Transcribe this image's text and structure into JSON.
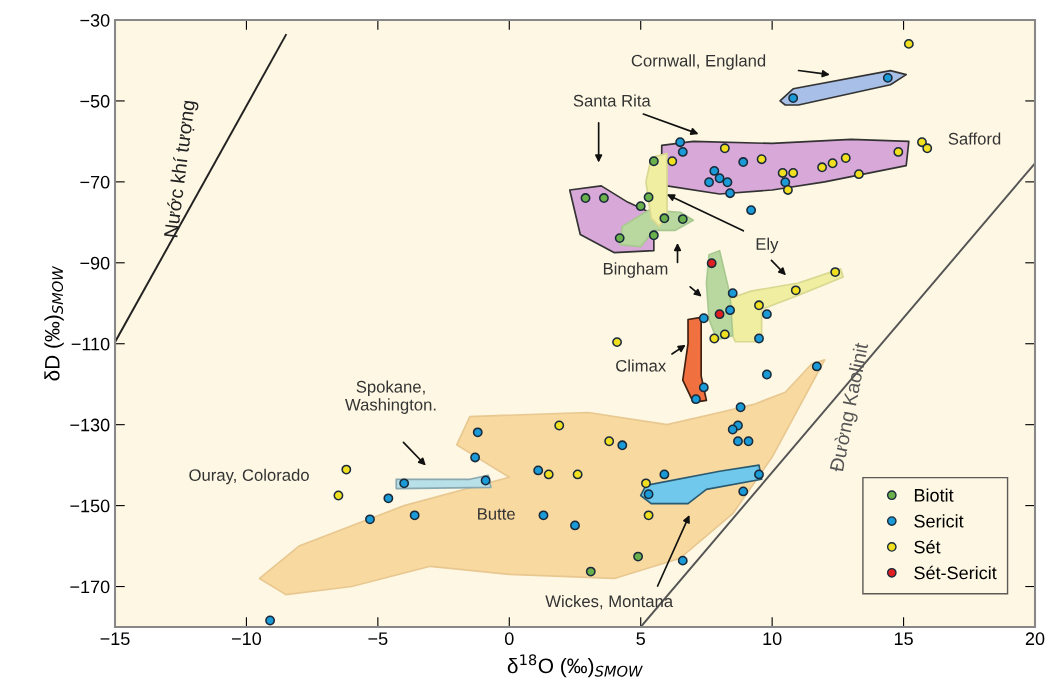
{
  "chart_data": {
    "type": "scatter",
    "xlabel": "δ$^{18}$O (‰)$_{SMOW}$",
    "ylabel": "δD (‰)$_{SMOW}$",
    "xlim": [
      -15,
      20
    ],
    "ylim": [
      -180,
      -30
    ],
    "xticks": [
      {
        "value": -15,
        "label": "−15"
      },
      {
        "value": -10,
        "label": "−10"
      },
      {
        "value": -5,
        "label": "−5"
      },
      0,
      5,
      10,
      15,
      20
    ],
    "yticks": [
      {
        "value": -30,
        "label": "−30"
      },
      {
        "value": -50,
        "label": "−50"
      },
      {
        "value": -70,
        "label": "−70"
      },
      {
        "value": -90,
        "label": "−90"
      },
      {
        "value": -110,
        "label": "−110"
      },
      {
        "value": -130,
        "label": "−130"
      },
      {
        "value": -150,
        "label": "−150"
      },
      {
        "value": -170,
        "label": "−170"
      }
    ],
    "grid": false,
    "legend": "bottom right",
    "marker": "circle",
    "series": [
      {
        "name": "Nước khí tượng",
        "type": "line",
        "marker": "none",
        "color": "#222222",
        "x": [
          -15,
          -8.5
        ],
        "values": [
          -109.6,
          -33.7
        ]
      },
      {
        "name": "Đường Kaolinit",
        "type": "line",
        "marker": "none",
        "color": "#555555",
        "x": [
          5.0,
          20
        ],
        "values": [
          -180,
          -65.4
        ]
      },
      {
        "name": "Biotit",
        "color": "#6ab04c",
        "x": [
          2.9,
          3.6,
          5.5,
          5.3,
          5.0,
          5.9,
          6.6,
          4.2,
          5.5,
          4.9,
          3.1
        ],
        "values": [
          -74.0,
          -74.0,
          -64.9,
          -73.8,
          -76.0,
          -79.0,
          -79.2,
          -83.9,
          -83.2,
          -162.6,
          -166.3
        ]
      },
      {
        "name": "Sericit",
        "color": "#1a9ad6",
        "x": [
          6.5,
          6.6,
          8.9,
          7.8,
          7.6,
          8.0,
          8.3,
          8.4,
          10.5,
          9.2,
          14.4,
          10.8,
          8.5,
          8.4,
          9.8,
          9.5,
          7.4,
          9.8,
          11.7,
          7.4,
          7.1,
          8.8,
          8.7,
          8.5,
          8.7,
          9.1,
          9.5,
          8.9,
          5.9,
          5.3,
          4.3,
          1.1,
          1.3,
          2.5,
          6.6,
          -0.9,
          -1.2,
          -1.3,
          -4.0,
          -4.6,
          -5.3,
          -3.6,
          -9.1
        ],
        "values": [
          -60.2,
          -62.6,
          -65.1,
          -67.3,
          -70.1,
          -69.1,
          -70.1,
          -72.8,
          -70.1,
          -77.0,
          -44.3,
          -49.3,
          -97.5,
          -101.7,
          -102.7,
          -108.7,
          -103.7,
          -117.6,
          -115.6,
          -120.8,
          -123.7,
          -125.7,
          -130.2,
          -131.2,
          -134.1,
          -134.1,
          -142.3,
          -146.5,
          -142.3,
          -147.2,
          -135.1,
          -141.3,
          -152.4,
          -154.9,
          -163.6,
          -143.8,
          -131.9,
          -138.1,
          -144.5,
          -148.2,
          -153.4,
          -152.4,
          -178.4
        ]
      },
      {
        "name": "Sét",
        "color": "#f0e020",
        "x": [
          -6.2,
          -6.5,
          1.9,
          3.8,
          1.5,
          2.6,
          5.2,
          5.3,
          4.1,
          8.2,
          7.8,
          9.5,
          10.9,
          12.4,
          6.2,
          8.2,
          9.6,
          10.4,
          10.8,
          10.6,
          15.2,
          15.7,
          15.9,
          14.8,
          12.8,
          12.3,
          11.9,
          13.3
        ],
        "values": [
          -141.1,
          -147.5,
          -130.2,
          -134.1,
          -142.3,
          -142.3,
          -144.5,
          -152.4,
          -109.6,
          -107.7,
          -108.7,
          -100.5,
          -96.8,
          -92.3,
          -64.9,
          -61.7,
          -64.4,
          -67.8,
          -67.8,
          -72.0,
          -35.9,
          -60.2,
          -61.7,
          -62.6,
          -64.1,
          -65.4,
          -66.4,
          -68.1
        ]
      },
      {
        "name": "Sét-Sericit",
        "color": "#e02020",
        "x": [
          7.7,
          8.0
        ],
        "values": [
          -90.1,
          -102.7
        ]
      }
    ],
    "annotations": [
      "Cornwall, England",
      "Santa Rita",
      "Safford",
      "Ely",
      "Bingham",
      "Climax",
      "Spokane,\nWashington.",
      "Ouray, Colorado",
      "Butte",
      "Wickes, Montana"
    ]
  }
}
